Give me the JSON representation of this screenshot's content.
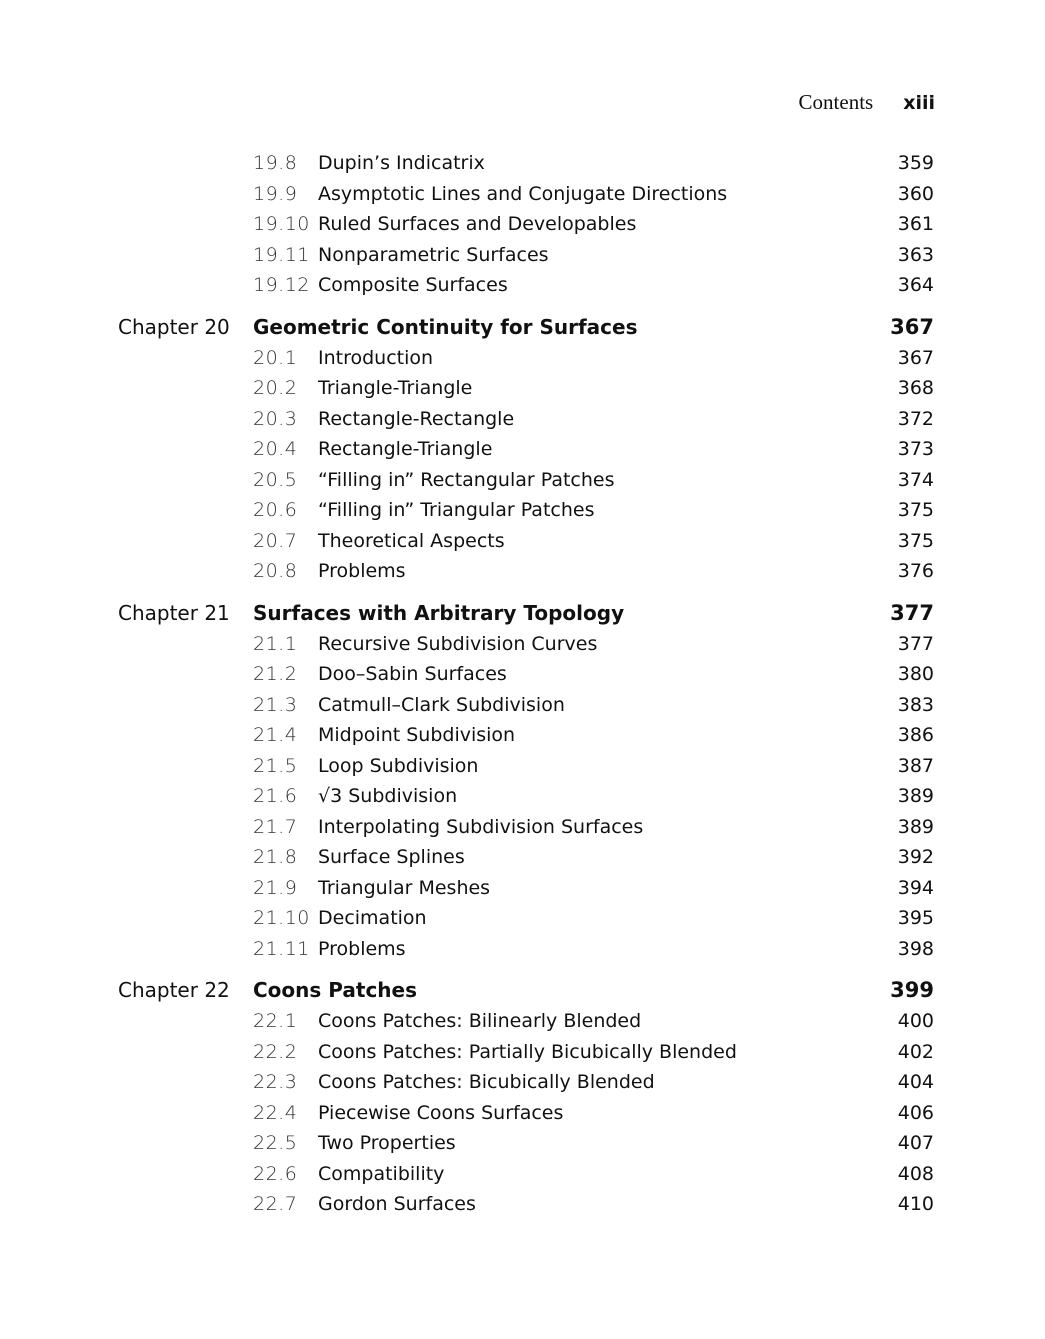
{
  "header": {
    "label": "Contents",
    "page": "xiii"
  },
  "entries": [
    {
      "type": "section",
      "num": "19.8",
      "title": "Dupin’s Indicatrix",
      "page": "359"
    },
    {
      "type": "section",
      "num": "19.9",
      "title": "Asymptotic Lines and Conjugate Directions",
      "page": "360"
    },
    {
      "type": "section",
      "num": "19.10",
      "title": "Ruled Surfaces and Developables",
      "page": "361"
    },
    {
      "type": "section",
      "num": "19.11",
      "title": "Nonparametric Surfaces",
      "page": "363"
    },
    {
      "type": "section",
      "num": "19.12",
      "title": "Composite Surfaces",
      "page": "364"
    },
    {
      "type": "chapter",
      "label": "Chapter 20",
      "title": "Geometric Continuity for Surfaces",
      "page": "367"
    },
    {
      "type": "section",
      "num": "20.1",
      "title": "Introduction",
      "page": "367"
    },
    {
      "type": "section",
      "num": "20.2",
      "title": "Triangle-Triangle",
      "page": "368"
    },
    {
      "type": "section",
      "num": "20.3",
      "title": "Rectangle-Rectangle",
      "page": "372"
    },
    {
      "type": "section",
      "num": "20.4",
      "title": "Rectangle-Triangle",
      "page": "373"
    },
    {
      "type": "section",
      "num": "20.5",
      "title": "“Filling in” Rectangular Patches",
      "page": "374"
    },
    {
      "type": "section",
      "num": "20.6",
      "title": "“Filling in” Triangular Patches",
      "page": "375"
    },
    {
      "type": "section",
      "num": "20.7",
      "title": "Theoretical Aspects",
      "page": "375"
    },
    {
      "type": "section",
      "num": "20.8",
      "title": "Problems",
      "page": "376"
    },
    {
      "type": "chapter",
      "label": "Chapter 21",
      "title": "Surfaces with Arbitrary Topology",
      "page": "377"
    },
    {
      "type": "section",
      "num": "21.1",
      "title": "Recursive Subdivision Curves",
      "page": "377"
    },
    {
      "type": "section",
      "num": "21.2",
      "title": "Doo–Sabin Surfaces",
      "page": "380"
    },
    {
      "type": "section",
      "num": "21.3",
      "title": "Catmull–Clark Subdivision",
      "page": "383"
    },
    {
      "type": "section",
      "num": "21.4",
      "title": "Midpoint Subdivision",
      "page": "386"
    },
    {
      "type": "section",
      "num": "21.5",
      "title": "Loop Subdivision",
      "page": "387"
    },
    {
      "type": "section",
      "num": "21.6",
      "title": "√3 Subdivision",
      "page": "389"
    },
    {
      "type": "section",
      "num": "21.7",
      "title": "Interpolating Subdivision Surfaces",
      "page": "389"
    },
    {
      "type": "section",
      "num": "21.8",
      "title": "Surface Splines",
      "page": "392"
    },
    {
      "type": "section",
      "num": "21.9",
      "title": "Triangular Meshes",
      "page": "394"
    },
    {
      "type": "section",
      "num": "21.10",
      "title": "Decimation",
      "page": "395"
    },
    {
      "type": "section",
      "num": "21.11",
      "title": "Problems",
      "page": "398"
    },
    {
      "type": "chapter",
      "label": "Chapter 22",
      "title": "Coons Patches",
      "page": "399"
    },
    {
      "type": "section",
      "num": "22.1",
      "title": "Coons Patches: Bilinearly Blended",
      "page": "400"
    },
    {
      "type": "section",
      "num": "22.2",
      "title": "Coons Patches: Partially Bicubically Blended",
      "page": "402"
    },
    {
      "type": "section",
      "num": "22.3",
      "title": "Coons Patches: Bicubically Blended",
      "page": "404"
    },
    {
      "type": "section",
      "num": "22.4",
      "title": "Piecewise Coons Surfaces",
      "page": "406"
    },
    {
      "type": "section",
      "num": "22.5",
      "title": "Two Properties",
      "page": "407"
    },
    {
      "type": "section",
      "num": "22.6",
      "title": "Compatibility",
      "page": "408"
    },
    {
      "type": "section",
      "num": "22.7",
      "title": "Gordon Surfaces",
      "page": "410"
    }
  ]
}
